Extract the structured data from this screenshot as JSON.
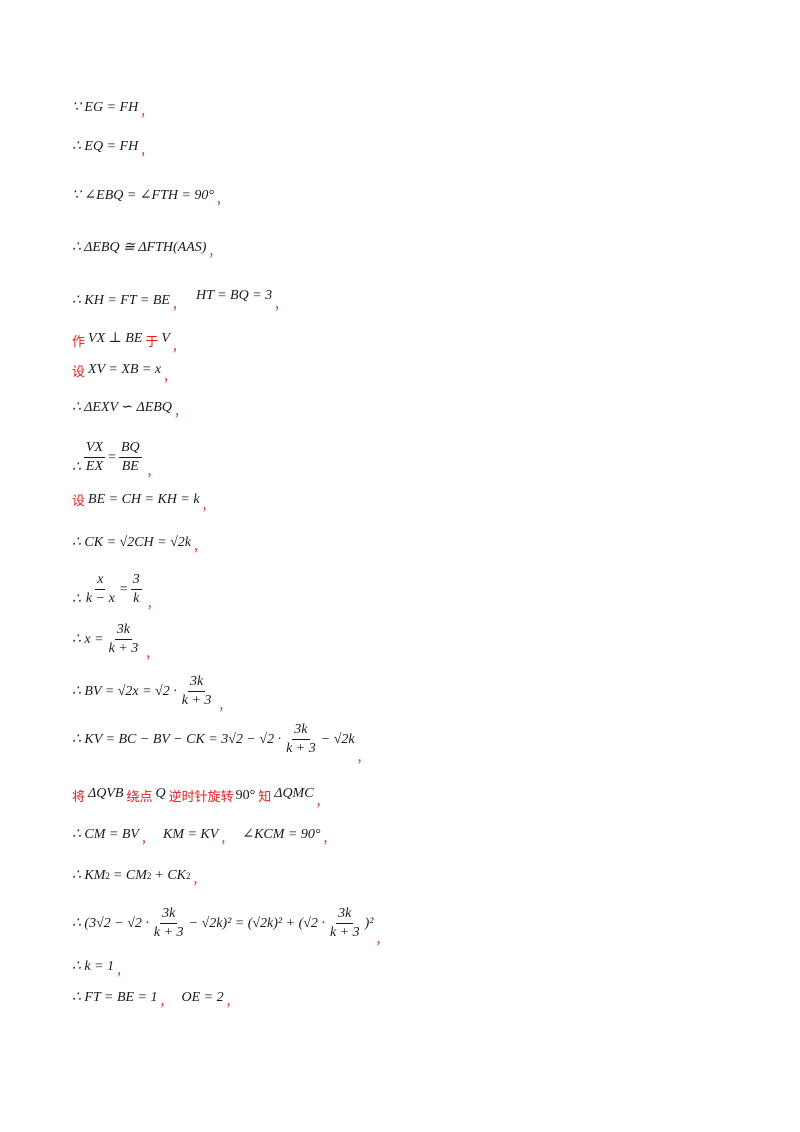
{
  "lines": {
    "l1": "∵ EG = FH",
    "l2": "∴ EQ = FH",
    "l3": "∵ ∠EBQ = ∠FTH = 90°",
    "l4": "∴ ΔEBQ ≅ ΔFTH(AAS)",
    "l5a": "∴ KH = FT = BE",
    "l5b": "HT = BQ = 3",
    "l6_zuo": "作",
    "l6_math": "VX ⊥ BE",
    "l6_yu": "于",
    "l6_v": "V",
    "l7_she": "设",
    "l7_math": "XV = XB = x",
    "l8": "∴ ΔEXV ∽ ΔEBQ",
    "l9_pre": "∴",
    "l9_n1": "VX",
    "l9_d1": "EX",
    "l9_n2": "BQ",
    "l9_d2": "BE",
    "l10_she": "设",
    "l10_math": "BE = CH = KH = k",
    "l11": "∴ CK = √2CH = √2k",
    "l12_pre": "∴",
    "l12_n1": "x",
    "l12_d1": "k − x",
    "l12_n2": "3",
    "l12_d2": "k",
    "l13_pre": "∴ x =",
    "l13_n": "3k",
    "l13_d": "k + 3",
    "l14_pre": "∴ BV = √2x = √2 ·",
    "l14_n": "3k",
    "l14_d": "k + 3",
    "l15_pre": "∴ KV = BC − BV − CK = 3√2 − √2 ·",
    "l15_n": "3k",
    "l15_d": "k + 3",
    "l15_post": "− √2k",
    "l16_jiang": "将",
    "l16_a": "ΔQVB",
    "l16_rao": "绕点",
    "l16_q": "Q",
    "l16_ni": "逆时针旋转",
    "l16_deg": "90°",
    "l16_zhi": "知",
    "l16_b": "ΔQMC",
    "l17a": "∴ CM = BV",
    "l17b": "KM = KV",
    "l17c": "∠KCM = 90°",
    "l18_a": "∴ KM",
    "l18_b": "= CM",
    "l18_c": "+ CK",
    "l18_sup": "2",
    "l19_pre": "∴ (3√2 − √2 ·",
    "l19_n1": "3k",
    "l19_d1": "k + 3",
    "l19_mid": "− √2k)² = (√2k)² + (√2 ·",
    "l19_n2": "3k",
    "l19_d2": "k + 3",
    "l19_post": ")²",
    "l20": "∴ k = 1",
    "l21a": "∴ FT = BE = 1",
    "l21b": "OE = 2",
    "comma": "，"
  }
}
